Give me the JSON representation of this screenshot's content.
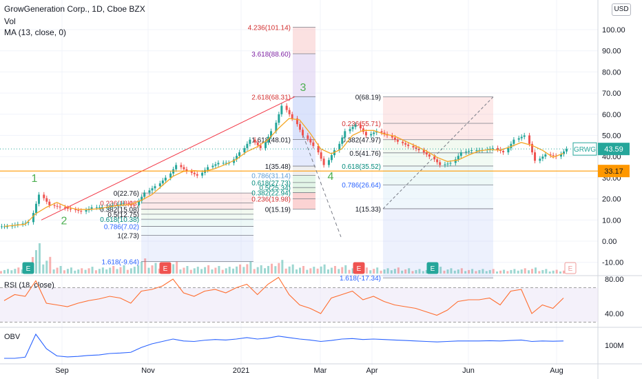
{
  "header": {
    "title": "GrowGeneration Corp., 1D, Cboe BZX",
    "vol_label": "Vol",
    "ma_label": "MA (13, close, 0)",
    "currency": "USD"
  },
  "colors": {
    "up": "#26a69a",
    "down": "#ef5350",
    "ma": "#f5a623",
    "rsi": "#ff6d2e",
    "obv": "#2962ff",
    "trend": "#f23645",
    "support": "#ff9800"
  },
  "chart_data": [
    {
      "type": "line",
      "title": "GrowGeneration Corp., 1D, Cboe BZX",
      "x": [
        "2020-08-03",
        "2020-08-10",
        "2020-08-17",
        "2020-08-24",
        "2020-08-31",
        "2020-09-07",
        "2020-09-14",
        "2020-09-21",
        "2020-09-28",
        "2020-10-05",
        "2020-10-12",
        "2020-10-19",
        "2020-10-26",
        "2020-11-02",
        "2020-11-09",
        "2020-11-16",
        "2020-11-23",
        "2020-11-30",
        "2020-12-07",
        "2020-12-14",
        "2020-12-21",
        "2020-12-28",
        "2021-01-04",
        "2021-01-11",
        "2021-01-18",
        "2021-01-25",
        "2021-02-01",
        "2021-02-08",
        "2021-02-15",
        "2021-02-22",
        "2021-03-01",
        "2021-03-08",
        "2021-03-15",
        "2021-03-22",
        "2021-03-29",
        "2021-04-05",
        "2021-04-12",
        "2021-04-19",
        "2021-04-26",
        "2021-05-03",
        "2021-05-10",
        "2021-05-17",
        "2021-05-24",
        "2021-05-31",
        "2021-06-07",
        "2021-06-14",
        "2021-06-21",
        "2021-06-28",
        "2021-07-05",
        "2021-07-12",
        "2021-07-19",
        "2021-07-26",
        "2021-08-02",
        "2021-08-09"
      ],
      "series": [
        {
          "name": "GRWG",
          "values": [
            7,
            8,
            9,
            22,
            17,
            16,
            15,
            14,
            16,
            16,
            17,
            18,
            17,
            23,
            26,
            30,
            36,
            33,
            31,
            35,
            37,
            37,
            42,
            48,
            44,
            52,
            64,
            58,
            50,
            45,
            36,
            43,
            52,
            55,
            50,
            52,
            50,
            47,
            45,
            43,
            40,
            36,
            37,
            42,
            43,
            43,
            44,
            42,
            48,
            50,
            38,
            41,
            40,
            43.59
          ]
        }
      ],
      "price_scale": [
        "100.00",
        "90.00",
        "80.00",
        "70.00",
        "60.00",
        "50.00",
        "40.00",
        "30.00",
        "20.00",
        "10.00",
        "0.00",
        "-10.00"
      ],
      "x_tick_labels": [
        "Sep",
        "Nov",
        "2021",
        "Mar",
        "Apr",
        "Jun",
        "Aug"
      ],
      "last_price_tag": {
        "symbol": "GRWG",
        "value": "43.59"
      },
      "support_level": "33.17",
      "wave_labels": [
        "1",
        "2",
        "3",
        "4"
      ],
      "event_markers": [
        "E",
        "E",
        "E",
        "E",
        "E"
      ],
      "fib_sets": [
        {
          "levels": [
            "0(22.76)",
            "0.236(18.03)",
            "0.382(15.08)",
            "0.5(12.75)",
            "0.618(10.38)",
            "0.786(7.02)",
            "1(2.73)",
            "1.618(-9.64)"
          ]
        },
        {
          "levels": [
            "4.236(101.14)",
            "3.618(88.60)",
            "2.618(68.31)",
            "1.618(48.01)",
            "1(35.48)",
            "0.786(31.14)",
            "0.618(27.73)",
            "0.5(25.34)",
            "0.382(22.94)",
            "0.236(19.98)",
            "0(15.19)"
          ]
        },
        {
          "levels": [
            "0(68.19)",
            "0.236(55.71)",
            "0.382(47.97)",
            "0.5(41.76)",
            "0.618(35.52)",
            "0.786(26.64)",
            "1(15.33)",
            "1.618(-17.34)"
          ]
        }
      ]
    },
    {
      "type": "line",
      "title": "RSI (18, close)",
      "series": [
        {
          "name": "RSI",
          "values": [
            55,
            62,
            60,
            78,
            52,
            50,
            48,
            52,
            55,
            57,
            60,
            58,
            52,
            66,
            68,
            72,
            80,
            64,
            60,
            66,
            68,
            64,
            70,
            74,
            62,
            74,
            82,
            62,
            50,
            46,
            40,
            58,
            62,
            66,
            56,
            60,
            54,
            50,
            48,
            46,
            42,
            38,
            44,
            54,
            56,
            56,
            58,
            50,
            66,
            68,
            40,
            50,
            46,
            58
          ]
        }
      ],
      "price_scale": [
        "80.00",
        "40.00"
      ]
    },
    {
      "type": "line",
      "title": "OBV",
      "series": [
        {
          "name": "OBV",
          "values": [
            0,
            0,
            5,
            100,
            40,
            10,
            6,
            8,
            12,
            14,
            20,
            22,
            25,
            45,
            60,
            70,
            80,
            72,
            70,
            75,
            78,
            76,
            80,
            86,
            80,
            84,
            92,
            86,
            80,
            76,
            70,
            74,
            80,
            82,
            78,
            80,
            78,
            76,
            74,
            72,
            70,
            68,
            70,
            72,
            72,
            72,
            73,
            72,
            74,
            76,
            70,
            72,
            71,
            72
          ]
        }
      ],
      "price_scale": [
        "100M"
      ]
    }
  ]
}
